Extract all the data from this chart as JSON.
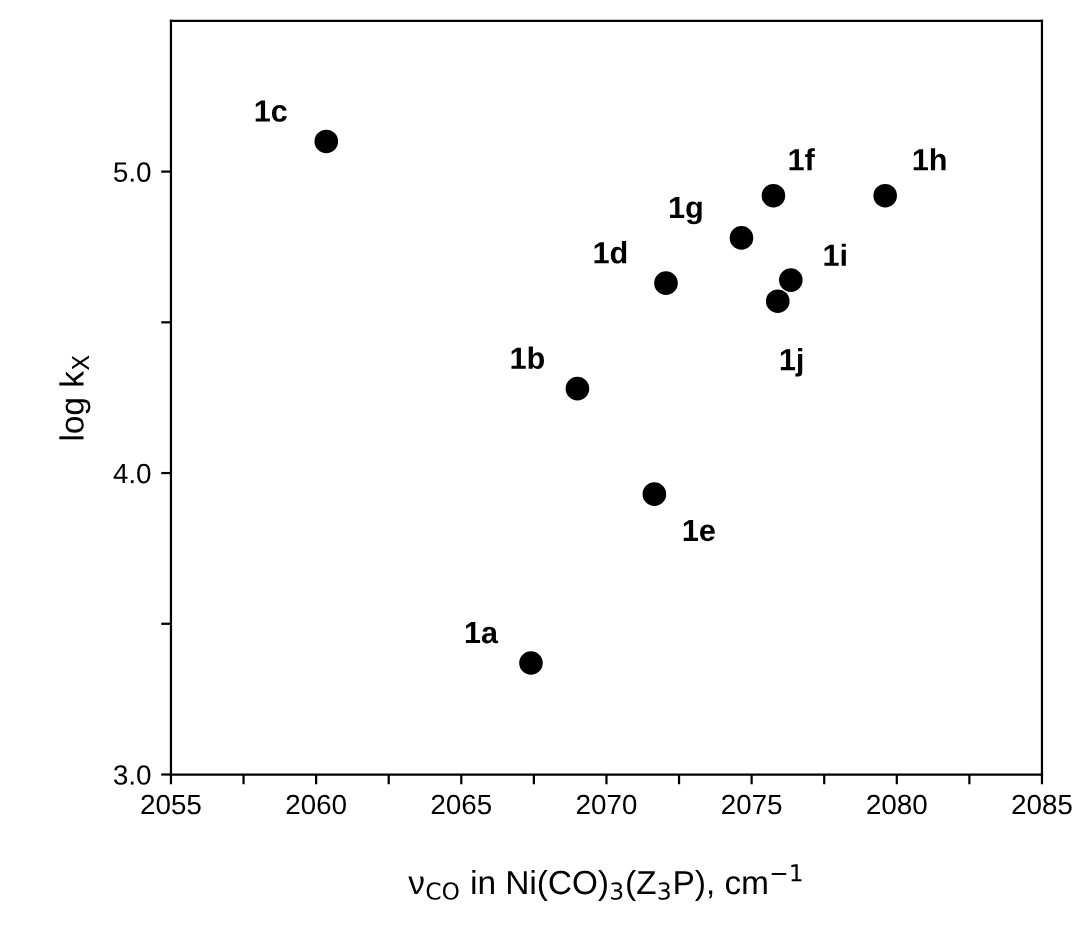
{
  "chart_data": {
    "type": "scatter",
    "xlabel": "ν$_{CO}$ in Ni(CO)$_{3}$(Z$_{3}$P), cm$^{−1}$",
    "ylabel": "log k$_{X}$",
    "x": [
      2067.4,
      2069.0,
      2060.35,
      2072.05,
      2071.65,
      2075.75,
      2074.65,
      2079.6,
      2076.35,
      2075.9
    ],
    "series": [
      {
        "color": "#000000",
        "values": [
          3.37,
          4.28,
          5.1,
          4.63,
          3.93,
          4.92,
          4.78,
          4.92,
          4.64,
          4.57
        ]
      }
    ],
    "marker": "circle",
    "grid": false,
    "legend": false,
    "xlim": [
      2055,
      2085
    ],
    "xticks": [
      2055,
      {
        "value": 2057.5,
        "label": null
      },
      2060,
      {
        "value": 2062.5,
        "label": null
      },
      2065,
      {
        "value": 2067.5,
        "label": null
      },
      2070,
      {
        "value": 2072.5,
        "label": null
      },
      2075,
      {
        "value": 2077.5,
        "label": null
      },
      2080,
      {
        "value": 2082.5,
        "label": null
      },
      2085
    ],
    "ylim": [
      3.0,
      5.5
    ],
    "yticks": [
      {
        "value": 3.0,
        "label": "3.0"
      },
      {
        "value": 3.5,
        "label": null
      },
      {
        "value": 4.0,
        "label": "4.0"
      },
      {
        "value": 4.5,
        "label": null
      },
      {
        "value": 5.0,
        "label": "5.0"
      }
    ],
    "annotations": [
      {
        "text": "1a",
        "x": 2067.4,
        "y": 3.37
      },
      {
        "text": "1b",
        "x": 2069.0,
        "y": 4.28
      },
      {
        "text": "1c",
        "x": 2060.35,
        "y": 5.1
      },
      {
        "text": "1d",
        "x": 2072.05,
        "y": 4.63
      },
      {
        "text": "1e",
        "x": 2071.65,
        "y": 3.93
      },
      {
        "text": "1f",
        "x": 2075.75,
        "y": 4.92
      },
      {
        "text": "1g",
        "x": 2074.65,
        "y": 4.78
      },
      {
        "text": "1h",
        "x": 2079.6,
        "y": 4.92
      },
      {
        "text": "1i",
        "x": 2076.35,
        "y": 4.64
      },
      {
        "text": "1j",
        "x": 2075.9,
        "y": 4.57
      }
    ]
  }
}
